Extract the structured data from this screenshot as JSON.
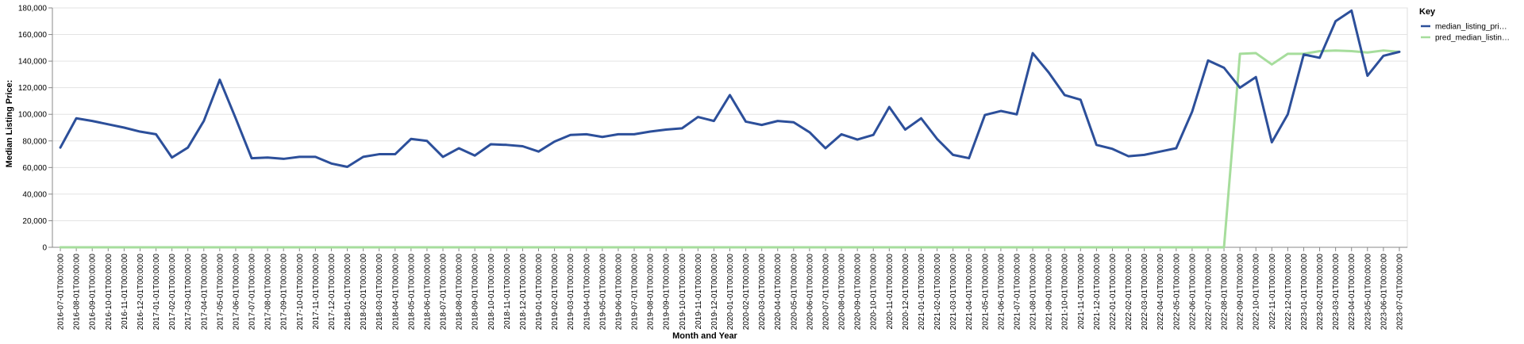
{
  "chart_data": {
    "type": "line",
    "xlabel": "Month and Year",
    "ylabel": "Median Listing Price:",
    "ylim": [
      0,
      180000
    ],
    "yticks": [
      "0",
      "20,000",
      "40,000",
      "60,000",
      "80,000",
      "100,000",
      "120,000",
      "140,000",
      "160,000",
      "180,000"
    ],
    "grid": true,
    "legend": {
      "title": "Key",
      "placement": "top-right",
      "entries": [
        "median_listing_pri…",
        "pred_median_listin…"
      ]
    },
    "x": [
      "2016-07-01T00:00:00",
      "2016-08-01T00:00:00",
      "2016-09-01T00:00:00",
      "2016-10-01T00:00:00",
      "2016-11-01T00:00:00",
      "2016-12-01T00:00:00",
      "2017-01-01T00:00:00",
      "2017-02-01T00:00:00",
      "2017-03-01T00:00:00",
      "2017-04-01T00:00:00",
      "2017-05-01T00:00:00",
      "2017-06-01T00:00:00",
      "2017-07-01T00:00:00",
      "2017-08-01T00:00:00",
      "2017-09-01T00:00:00",
      "2017-10-01T00:00:00",
      "2017-11-01T00:00:00",
      "2017-12-01T00:00:00",
      "2018-01-01T00:00:00",
      "2018-02-01T00:00:00",
      "2018-03-01T00:00:00",
      "2018-04-01T00:00:00",
      "2018-05-01T00:00:00",
      "2018-06-01T00:00:00",
      "2018-07-01T00:00:00",
      "2018-08-01T00:00:00",
      "2018-09-01T00:00:00",
      "2018-10-01T00:00:00",
      "2018-11-01T00:00:00",
      "2018-12-01T00:00:00",
      "2019-01-01T00:00:00",
      "2019-02-01T00:00:00",
      "2019-03-01T00:00:00",
      "2019-04-01T00:00:00",
      "2019-05-01T00:00:00",
      "2019-06-01T00:00:00",
      "2019-07-01T00:00:00",
      "2019-08-01T00:00:00",
      "2019-09-01T00:00:00",
      "2019-10-01T00:00:00",
      "2019-11-01T00:00:00",
      "2019-12-01T00:00:00",
      "2020-01-01T00:00:00",
      "2020-02-01T00:00:00",
      "2020-03-01T00:00:00",
      "2020-04-01T00:00:00",
      "2020-05-01T00:00:00",
      "2020-06-01T00:00:00",
      "2020-07-01T00:00:00",
      "2020-08-01T00:00:00",
      "2020-09-01T00:00:00",
      "2020-10-01T00:00:00",
      "2020-11-01T00:00:00",
      "2020-12-01T00:00:00",
      "2021-01-01T00:00:00",
      "2021-02-01T00:00:00",
      "2021-03-01T00:00:00",
      "2021-04-01T00:00:00",
      "2021-05-01T00:00:00",
      "2021-06-01T00:00:00",
      "2021-07-01T00:00:00",
      "2021-08-01T00:00:00",
      "2021-09-01T00:00:00",
      "2021-10-01T00:00:00",
      "2021-11-01T00:00:00",
      "2021-12-01T00:00:00",
      "2022-01-01T00:00:00",
      "2022-02-01T00:00:00",
      "2022-03-01T00:00:00",
      "2022-04-01T00:00:00",
      "2022-05-01T00:00:00",
      "2022-06-01T00:00:00",
      "2022-07-01T00:00:00",
      "2022-08-01T00:00:00",
      "2022-09-01T00:00:00",
      "2022-10-01T00:00:00",
      "2022-11-01T00:00:00",
      "2022-12-01T00:00:00",
      "2023-01-01T00:00:00",
      "2023-02-01T00:00:00",
      "2023-03-01T00:00:00",
      "2023-04-01T00:00:00",
      "2023-05-01T00:00:00",
      "2023-06-01T00:00:00",
      "2023-07-01T00:00:00"
    ],
    "series": [
      {
        "name": "median_listing_pri…",
        "color": "#2c4f9a",
        "values": [
          75000,
          97000,
          95000,
          92500,
          90000,
          87000,
          85000,
          67500,
          75000,
          95000,
          126000,
          97000,
          67000,
          67500,
          66500,
          68000,
          68000,
          63000,
          60500,
          68000,
          70000,
          70000,
          81500,
          80000,
          68000,
          74500,
          69000,
          77500,
          77000,
          76000,
          72000,
          79500,
          84500,
          85000,
          83000,
          85000,
          85000,
          87000,
          88500,
          89500,
          98000,
          95000,
          114500,
          94500,
          92000,
          95000,
          94000,
          86500,
          74500,
          85000,
          81000,
          84500,
          105500,
          88500,
          97000,
          81500,
          69500,
          67000,
          99500,
          102500,
          100000,
          146000,
          131500,
          114500,
          111000,
          77000,
          74000,
          68500,
          69500,
          72000,
          74500,
          102000,
          140500,
          135000,
          120000,
          128000,
          79000,
          100000,
          145000,
          142500,
          170000,
          178000,
          129000,
          144000,
          147000
        ]
      },
      {
        "name": "pred_median_listin…",
        "color": "#a6dd9c",
        "values": [
          0,
          0,
          0,
          0,
          0,
          0,
          0,
          0,
          0,
          0,
          0,
          0,
          0,
          0,
          0,
          0,
          0,
          0,
          0,
          0,
          0,
          0,
          0,
          0,
          0,
          0,
          0,
          0,
          0,
          0,
          0,
          0,
          0,
          0,
          0,
          0,
          0,
          0,
          0,
          0,
          0,
          0,
          0,
          0,
          0,
          0,
          0,
          0,
          0,
          0,
          0,
          0,
          0,
          0,
          0,
          0,
          0,
          0,
          0,
          0,
          0,
          0,
          0,
          0,
          0,
          0,
          0,
          0,
          0,
          0,
          0,
          0,
          0,
          0,
          145500,
          146000,
          137500,
          145500,
          145500,
          147500,
          148000,
          147500,
          146500,
          148000,
          147000
        ]
      }
    ]
  }
}
